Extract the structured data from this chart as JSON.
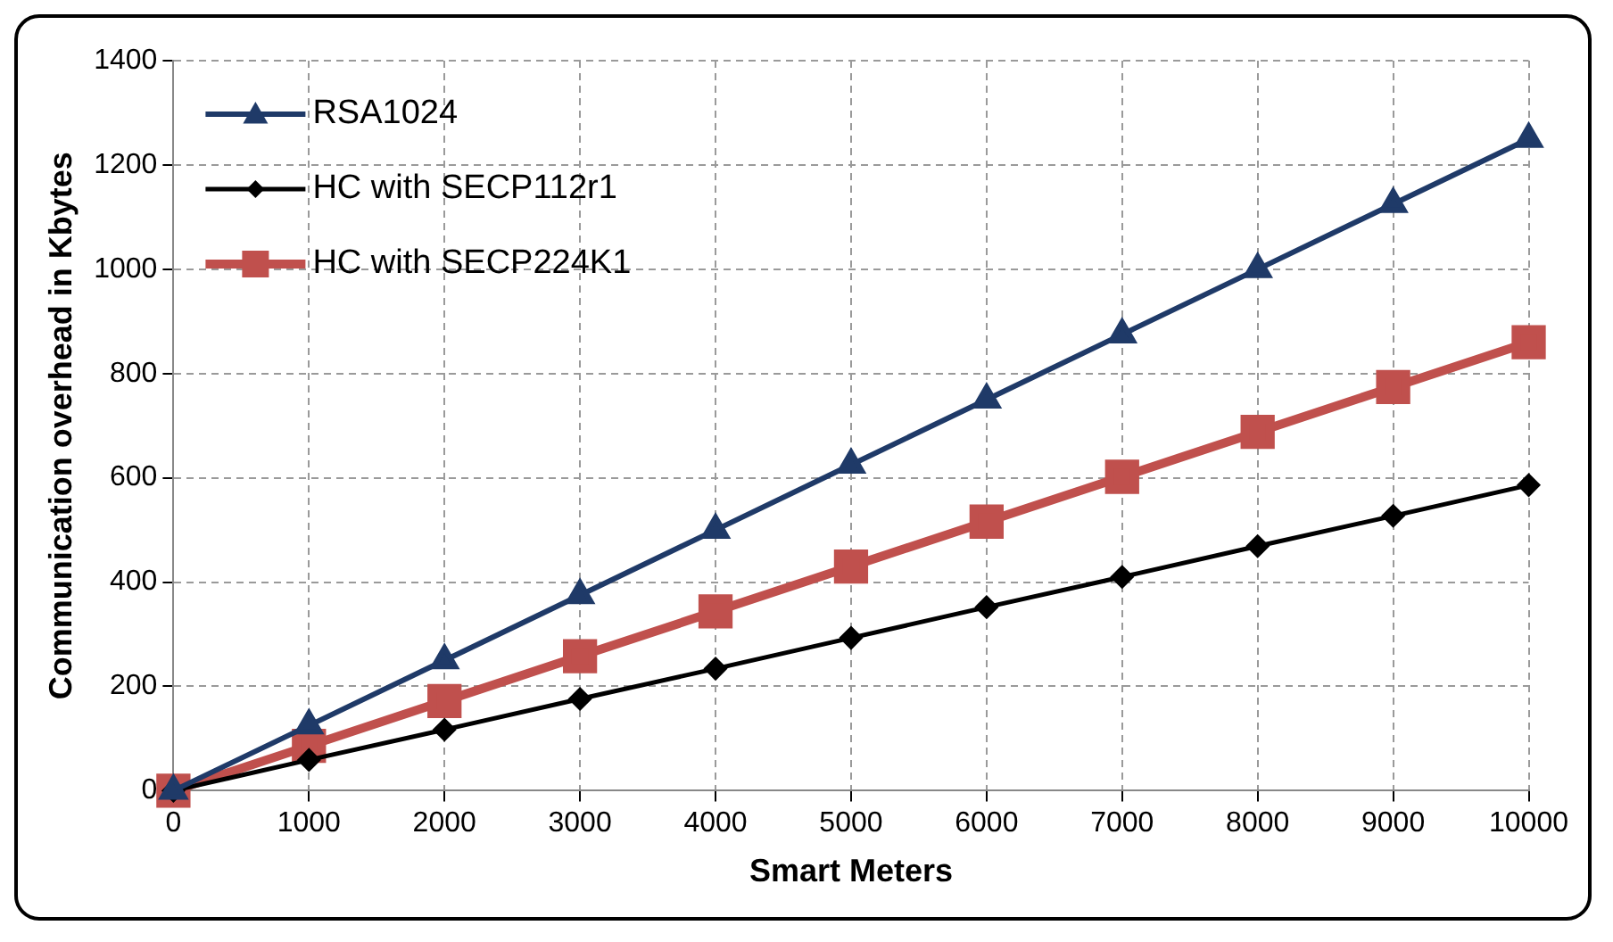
{
  "chart_data": {
    "type": "line",
    "xlabel": "Smart Meters",
    "ylabel": "Communication overhead in Kbytes",
    "x": [
      0,
      1000,
      2000,
      3000,
      4000,
      5000,
      6000,
      7000,
      8000,
      9000,
      10000
    ],
    "series": [
      {
        "name": "RSA1024",
        "color": "#1f3a68",
        "marker": "triangle",
        "values": [
          0,
          125,
          250,
          375,
          500,
          625,
          750,
          875,
          1000,
          1125,
          1250
        ]
      },
      {
        "name": "HC with SECP112r1",
        "color": "#000000",
        "marker": "diamond",
        "values": [
          0,
          59,
          117,
          176,
          234,
          293,
          352,
          410,
          469,
          527,
          586
        ]
      },
      {
        "name": "HC with SECP224K1",
        "color": "#c0504d",
        "marker": "square",
        "values": [
          0,
          86,
          172,
          258,
          344,
          430,
          516,
          602,
          688,
          774,
          860
        ]
      }
    ],
    "xlim": [
      0,
      10000
    ],
    "xticks": [
      0,
      1000,
      2000,
      3000,
      4000,
      5000,
      6000,
      7000,
      8000,
      9000,
      10000
    ],
    "ylim": [
      0,
      1400
    ],
    "yticks": [
      0,
      200,
      400,
      600,
      800,
      1000,
      1200,
      1400
    ],
    "grid": true,
    "legend": "top left",
    "line_style": "solid"
  }
}
